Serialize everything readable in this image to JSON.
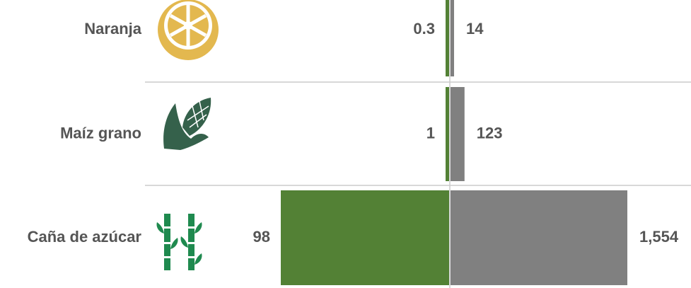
{
  "chart_data": {
    "type": "bar",
    "orientation": "butterfly",
    "categories": [
      "Naranja",
      "Maíz grano",
      "Caña de azúcar"
    ],
    "series": [
      {
        "color": "#538135",
        "values": [
          0.3,
          1,
          98
        ]
      },
      {
        "color": "#808080",
        "values": [
          14,
          123,
          1554
        ],
        "value_labels": [
          "14",
          "123",
          "1,554"
        ]
      }
    ]
  }
}
